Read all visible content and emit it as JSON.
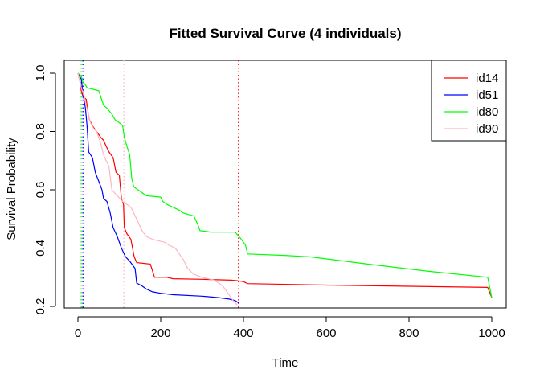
{
  "chart_data": {
    "type": "line",
    "title": "Fitted Survival Curve (4 individuals)",
    "xlabel": "Time",
    "ylabel": "Survival Probability",
    "xlim": [
      0,
      1000
    ],
    "ylim": [
      0.2,
      1.0
    ],
    "xticks": [
      0,
      200,
      400,
      600,
      800,
      1000
    ],
    "yticks": [
      0.2,
      0.4,
      0.6,
      0.8,
      1.0
    ],
    "xtick_labels": [
      "0",
      "200",
      "400",
      "600",
      "800",
      "1000"
    ],
    "ytick_labels": [
      "0.2",
      "0.4",
      "0.6",
      "0.8",
      "1.0"
    ],
    "legend_position": "top-right",
    "series": [
      {
        "name": "id14",
        "color": "#ff0000",
        "points": [
          [
            0,
            1.0
          ],
          [
            5,
            0.97
          ],
          [
            8,
            0.94
          ],
          [
            12,
            0.92
          ],
          [
            20,
            0.91
          ],
          [
            25,
            0.86
          ],
          [
            28,
            0.84
          ],
          [
            35,
            0.82
          ],
          [
            45,
            0.8
          ],
          [
            55,
            0.78
          ],
          [
            62,
            0.77
          ],
          [
            68,
            0.75
          ],
          [
            75,
            0.73
          ],
          [
            85,
            0.71
          ],
          [
            92,
            0.66
          ],
          [
            100,
            0.65
          ],
          [
            105,
            0.57
          ],
          [
            110,
            0.55
          ],
          [
            112,
            0.47
          ],
          [
            118,
            0.45
          ],
          [
            128,
            0.43
          ],
          [
            136,
            0.37
          ],
          [
            142,
            0.35
          ],
          [
            175,
            0.345
          ],
          [
            185,
            0.3
          ],
          [
            215,
            0.3
          ],
          [
            230,
            0.295
          ],
          [
            300,
            0.293
          ],
          [
            370,
            0.29
          ],
          [
            385,
            0.288
          ],
          [
            400,
            0.285
          ],
          [
            410,
            0.278
          ],
          [
            600,
            0.273
          ],
          [
            800,
            0.269
          ],
          [
            990,
            0.265
          ],
          [
            1000,
            0.23
          ]
        ],
        "vline": 388
      },
      {
        "name": "id51",
        "color": "#0000ff",
        "points": [
          [
            0,
            1.0
          ],
          [
            8,
            0.98
          ],
          [
            12,
            0.93
          ],
          [
            18,
            0.88
          ],
          [
            22,
            0.82
          ],
          [
            26,
            0.73
          ],
          [
            35,
            0.71
          ],
          [
            42,
            0.66
          ],
          [
            50,
            0.63
          ],
          [
            58,
            0.6
          ],
          [
            62,
            0.57
          ],
          [
            70,
            0.56
          ],
          [
            78,
            0.52
          ],
          [
            85,
            0.47
          ],
          [
            95,
            0.44
          ],
          [
            105,
            0.4
          ],
          [
            115,
            0.37
          ],
          [
            125,
            0.355
          ],
          [
            138,
            0.33
          ],
          [
            142,
            0.28
          ],
          [
            155,
            0.27
          ],
          [
            165,
            0.26
          ],
          [
            180,
            0.25
          ],
          [
            200,
            0.245
          ],
          [
            230,
            0.24
          ],
          [
            300,
            0.235
          ],
          [
            340,
            0.23
          ],
          [
            365,
            0.225
          ],
          [
            380,
            0.22
          ],
          [
            390,
            0.21
          ]
        ],
        "vline": 12
      },
      {
        "name": "id80",
        "color": "#00ff00",
        "points": [
          [
            0,
            1.0
          ],
          [
            8,
            0.99
          ],
          [
            12,
            0.97
          ],
          [
            18,
            0.96
          ],
          [
            22,
            0.95
          ],
          [
            50,
            0.94
          ],
          [
            55,
            0.92
          ],
          [
            62,
            0.89
          ],
          [
            70,
            0.88
          ],
          [
            82,
            0.86
          ],
          [
            90,
            0.84
          ],
          [
            100,
            0.83
          ],
          [
            108,
            0.82
          ],
          [
            112,
            0.78
          ],
          [
            118,
            0.75
          ],
          [
            125,
            0.72
          ],
          [
            130,
            0.64
          ],
          [
            135,
            0.61
          ],
          [
            145,
            0.6
          ],
          [
            155,
            0.59
          ],
          [
            165,
            0.58
          ],
          [
            200,
            0.575
          ],
          [
            205,
            0.56
          ],
          [
            215,
            0.55
          ],
          [
            230,
            0.54
          ],
          [
            245,
            0.53
          ],
          [
            255,
            0.52
          ],
          [
            280,
            0.51
          ],
          [
            290,
            0.48
          ],
          [
            295,
            0.46
          ],
          [
            320,
            0.455
          ],
          [
            380,
            0.455
          ],
          [
            395,
            0.43
          ],
          [
            405,
            0.41
          ],
          [
            410,
            0.38
          ],
          [
            500,
            0.375
          ],
          [
            560,
            0.37
          ],
          [
            700,
            0.345
          ],
          [
            850,
            0.32
          ],
          [
            990,
            0.3
          ],
          [
            1000,
            0.23
          ]
        ],
        "vline": 8
      },
      {
        "name": "id90",
        "color": "#ffb6c1",
        "points": [
          [
            0,
            1.0
          ],
          [
            8,
            0.95
          ],
          [
            15,
            0.92
          ],
          [
            25,
            0.86
          ],
          [
            30,
            0.83
          ],
          [
            38,
            0.81
          ],
          [
            45,
            0.8
          ],
          [
            55,
            0.76
          ],
          [
            62,
            0.72
          ],
          [
            68,
            0.7
          ],
          [
            75,
            0.68
          ],
          [
            82,
            0.6
          ],
          [
            95,
            0.58
          ],
          [
            108,
            0.56
          ],
          [
            118,
            0.55
          ],
          [
            128,
            0.54
          ],
          [
            135,
            0.52
          ],
          [
            145,
            0.49
          ],
          [
            155,
            0.46
          ],
          [
            165,
            0.44
          ],
          [
            180,
            0.43
          ],
          [
            195,
            0.425
          ],
          [
            210,
            0.42
          ],
          [
            220,
            0.41
          ],
          [
            235,
            0.4
          ],
          [
            245,
            0.38
          ],
          [
            255,
            0.36
          ],
          [
            265,
            0.33
          ],
          [
            280,
            0.31
          ],
          [
            300,
            0.3
          ],
          [
            330,
            0.29
          ],
          [
            350,
            0.27
          ],
          [
            365,
            0.24
          ],
          [
            375,
            0.22
          ],
          [
            385,
            0.205
          ]
        ],
        "vline": 111
      }
    ]
  }
}
